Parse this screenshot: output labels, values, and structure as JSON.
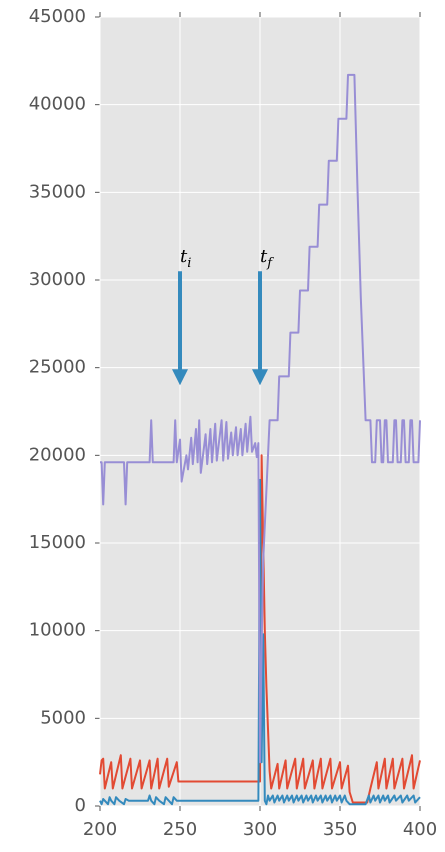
{
  "chart_data": {
    "type": "line",
    "xlim": [
      200,
      400
    ],
    "xticks": [
      200,
      250,
      300,
      350,
      400
    ],
    "ylim": [
      0,
      45000
    ],
    "yticks": [
      0,
      5000,
      10000,
      15000,
      20000,
      25000,
      30000,
      35000,
      40000,
      45000
    ],
    "grid": true,
    "series": [
      {
        "color": "#E24A33",
        "x": [
          200,
          201,
          202,
          203,
          207,
          208,
          213,
          214,
          219,
          220,
          225,
          226,
          231,
          232,
          236,
          237,
          242,
          243,
          248,
          249,
          299,
          300,
          301,
          302,
          303,
          304,
          306,
          307,
          311,
          312,
          316,
          317,
          322,
          323,
          327,
          328,
          333,
          334,
          338,
          339,
          344,
          345,
          350,
          351,
          355,
          356,
          358,
          367,
          369,
          373,
          374,
          378,
          379,
          383,
          384,
          389,
          390,
          395,
          396,
          400
        ],
        "values": [
          1800,
          2600,
          2700,
          1000,
          2500,
          1000,
          2900,
          1000,
          2700,
          1000,
          2600,
          1000,
          2600,
          1000,
          2700,
          1000,
          2700,
          1100,
          2500,
          1400,
          1400,
          1400,
          20000,
          15000,
          10000,
          6800,
          2000,
          1000,
          2400,
          1000,
          2600,
          1000,
          2700,
          1000,
          2700,
          1000,
          2600,
          1000,
          2700,
          1000,
          2700,
          1000,
          2500,
          1000,
          2300,
          800,
          200,
          200,
          1000,
          2500,
          1000,
          2700,
          1000,
          2700,
          1000,
          2700,
          1000,
          2900,
          1000,
          2600
        ]
      },
      {
        "color": "#348ABD",
        "x": [
          200,
          201,
          202,
          203,
          205,
          206,
          207,
          209,
          210,
          212,
          215,
          216,
          218,
          230,
          231,
          232,
          234,
          235,
          237,
          240,
          241,
          243,
          245,
          246,
          248,
          250,
          299,
          300,
          301,
          302,
          303,
          304,
          305,
          306,
          308,
          309,
          311,
          312,
          314,
          315,
          317,
          318,
          320,
          321,
          323,
          324,
          326,
          327,
          329,
          330,
          332,
          333,
          335,
          336,
          338,
          339,
          341,
          342,
          344,
          345,
          347,
          348,
          350,
          351,
          353,
          354,
          356,
          366,
          368,
          369,
          371,
          372,
          374,
          375,
          377,
          378,
          380,
          381,
          384,
          385,
          388,
          389,
          392,
          393,
          396,
          397,
          400
        ],
        "values": [
          300,
          100,
          400,
          300,
          100,
          500,
          300,
          100,
          500,
          300,
          100,
          400,
          300,
          300,
          600,
          300,
          100,
          500,
          300,
          100,
          500,
          300,
          100,
          500,
          300,
          300,
          300,
          18600,
          2500,
          9800,
          300,
          100,
          600,
          300,
          600,
          200,
          600,
          300,
          600,
          200,
          600,
          300,
          600,
          200,
          600,
          300,
          600,
          200,
          600,
          300,
          600,
          200,
          600,
          300,
          600,
          200,
          600,
          300,
          600,
          200,
          600,
          300,
          600,
          200,
          600,
          300,
          100,
          100,
          600,
          200,
          600,
          300,
          600,
          200,
          600,
          300,
          600,
          200,
          600,
          300,
          600,
          200,
          600,
          300,
          600,
          200,
          500
        ]
      },
      {
        "color": "#988ED5",
        "x": [
          200,
          201,
          202,
          203,
          215,
          216,
          217,
          231,
          232,
          233,
          246,
          247,
          248,
          250,
          251,
          254,
          255,
          257,
          258,
          260,
          261,
          262,
          263,
          266,
          267,
          269,
          270,
          272,
          273,
          276,
          277,
          279,
          280,
          282,
          283,
          285,
          286,
          288,
          289,
          291,
          292,
          294,
          295,
          297,
          298,
          299,
          300,
          301,
          302,
          304,
          306,
          311,
          312,
          318,
          319,
          324,
          325,
          330,
          331,
          336,
          337,
          342,
          343,
          348,
          349,
          354,
          355,
          359,
          361,
          363,
          366,
          369,
          370,
          372,
          373,
          375,
          376,
          377,
          378,
          379,
          380,
          383,
          384,
          385,
          386,
          388,
          389,
          390,
          391,
          393,
          394,
          395,
          396,
          399,
          400
        ],
        "values": [
          19600,
          19600,
          17200,
          19600,
          19600,
          17200,
          19600,
          19600,
          22000,
          19600,
          19600,
          22000,
          19600,
          20900,
          18500,
          20000,
          19200,
          21000,
          19500,
          21500,
          19600,
          22000,
          19000,
          21200,
          19500,
          21500,
          19600,
          21800,
          19700,
          22000,
          19700,
          21900,
          19800,
          21300,
          20000,
          21600,
          20000,
          21500,
          20000,
          21800,
          20200,
          22200,
          20200,
          20700,
          19900,
          20700,
          2500,
          9000,
          14000,
          18000,
          22000,
          22000,
          24500,
          24500,
          27000,
          27000,
          29400,
          29400,
          31900,
          31900,
          34300,
          34300,
          36800,
          36800,
          39200,
          39200,
          41700,
          41700,
          35000,
          29000,
          22000,
          22000,
          19600,
          19600,
          22000,
          22000,
          19600,
          19600,
          22000,
          22000,
          19600,
          19600,
          22000,
          22000,
          19600,
          19600,
          22000,
          22000,
          19600,
          19600,
          22000,
          22000,
          19600,
          19600,
          22000
        ]
      }
    ],
    "annotations": [
      {
        "label": "t",
        "subscript": "i",
        "x": 250,
        "y": 30500,
        "y_end": 24000
      },
      {
        "label": "t",
        "subscript": "f",
        "x": 300,
        "y": 30500,
        "y_end": 24000
      }
    ]
  }
}
